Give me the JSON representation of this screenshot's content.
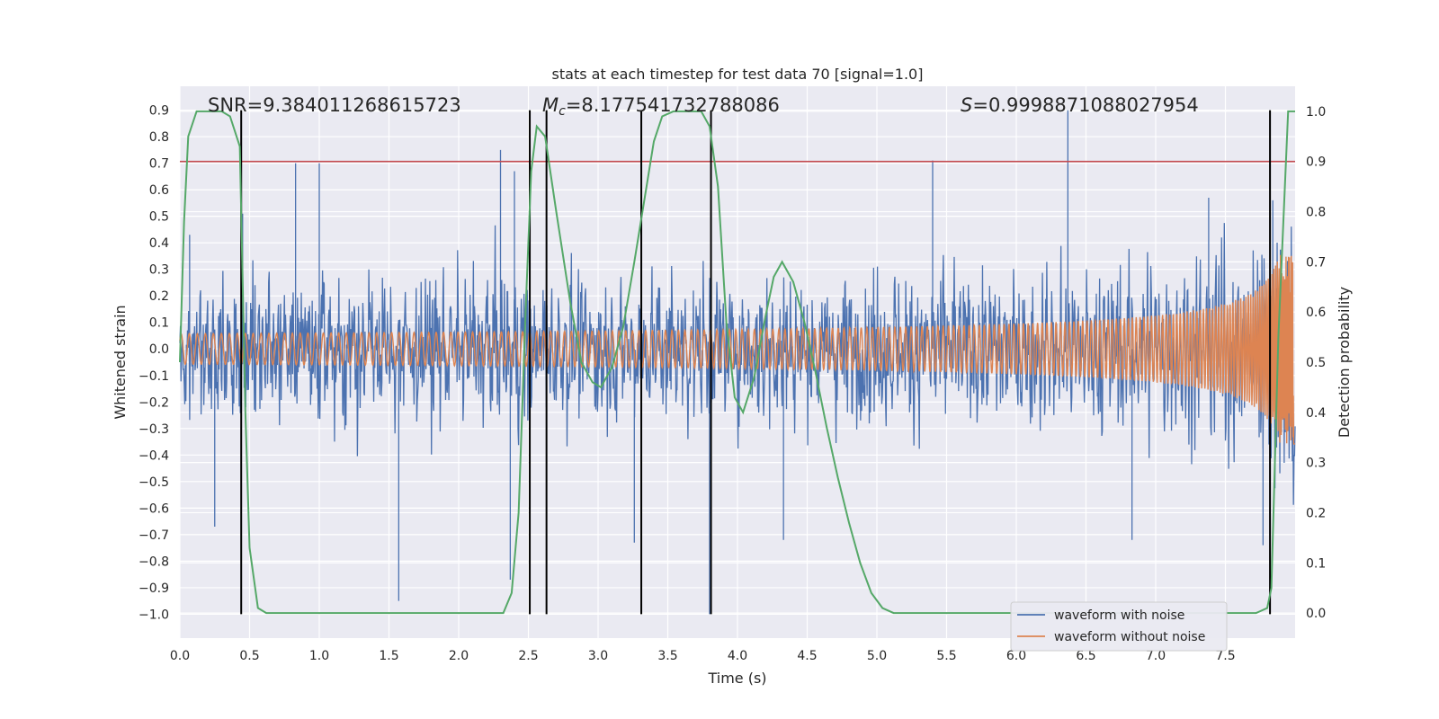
{
  "chart_data": {
    "type": "line",
    "title": "stats at each timestep for test data 70 [signal=1.0]",
    "xlabel": "Time (s)",
    "ylabel": "Whitened strain",
    "ylabel_right": "Detection probability",
    "xlim": [
      0.0,
      8.0
    ],
    "ylim": [
      -1.09,
      0.99
    ],
    "ylim_right": [
      -0.05,
      1.05
    ],
    "xticks": [
      0.0,
      0.5,
      1.0,
      1.5,
      2.0,
      2.5,
      3.0,
      3.5,
      4.0,
      4.5,
      5.0,
      5.5,
      6.0,
      6.5,
      7.0,
      7.5
    ],
    "xtick_labels": [
      "0.0",
      "0.5",
      "1.0",
      "1.5",
      "2.0",
      "2.5",
      "3.0",
      "3.5",
      "4.0",
      "4.5",
      "5.0",
      "5.5",
      "6.0",
      "6.5",
      "7.0",
      "7.5"
    ],
    "yticks": [
      0.9,
      0.8,
      0.7,
      0.6,
      0.5,
      0.4,
      0.3,
      0.2,
      0.1,
      0.0,
      -0.1,
      -0.2,
      -0.3,
      -0.4,
      -0.5,
      -0.6,
      -0.7,
      -0.8,
      -0.9,
      -1.0
    ],
    "ytick_labels": [
      "0.9",
      "0.8",
      "0.7",
      "0.6",
      "0.5",
      "0.4",
      "0.3",
      "0.2",
      "0.1",
      "0.0",
      "−0.1",
      "−0.2",
      "−0.3",
      "−0.4",
      "−0.5",
      "−0.6",
      "−0.7",
      "−0.8",
      "−0.9",
      "−1.0"
    ],
    "yticks_right": [
      1.0,
      0.9,
      0.8,
      0.7,
      0.6,
      0.5,
      0.4,
      0.3,
      0.2,
      0.1,
      0.0
    ],
    "ytick_labels_right": [
      "1.0",
      "0.9",
      "0.8",
      "0.7",
      "0.6",
      "0.5",
      "0.4",
      "0.3",
      "0.2",
      "0.1",
      "0.0"
    ],
    "annotations": {
      "snr": "SNR=9.384011268615723",
      "mc_symbol": "M",
      "mc_sub": "c",
      "mc_value": "=8.177541732788086",
      "s_symbol": "S",
      "s_value": "=0.9998871088027954"
    },
    "threshold_right": 0.9,
    "vertical_lines_x": [
      0.44,
      2.51,
      2.63,
      3.31,
      3.81,
      7.82
    ],
    "series": [
      {
        "name": "waveform with noise",
        "color": "#4c72b0",
        "axis": "left",
        "noise_amplitude": 0.35,
        "peak_samples": [
          [
            0.07,
            0.43
          ],
          [
            0.45,
            0.51
          ],
          [
            0.83,
            0.7
          ],
          [
            1.0,
            0.7
          ],
          [
            2.3,
            0.75
          ],
          [
            2.4,
            0.67
          ],
          [
            5.4,
            0.71
          ],
          [
            6.37,
            0.9
          ],
          [
            7.38,
            0.57
          ],
          [
            7.84,
            0.56
          ],
          [
            0.25,
            -0.67
          ],
          [
            1.57,
            -0.95
          ],
          [
            2.37,
            -0.87
          ],
          [
            3.26,
            -0.73
          ],
          [
            3.8,
            -1.0
          ],
          [
            4.33,
            -0.72
          ],
          [
            6.83,
            -0.72
          ],
          [
            7.77,
            -0.74
          ]
        ]
      },
      {
        "name": "waveform without noise",
        "color": "#dd8452",
        "axis": "left",
        "chirp": {
          "amplitude_start": 0.02,
          "amplitude_end": 0.36,
          "t_merge": 7.99
        }
      },
      {
        "name": "",
        "color": "#55a868",
        "axis": "right",
        "x": [
          0.0,
          0.03,
          0.06,
          0.12,
          0.2,
          0.3,
          0.36,
          0.43,
          0.47,
          0.5,
          0.56,
          0.62,
          0.7,
          1.0,
          1.5,
          2.0,
          2.2,
          2.32,
          2.38,
          2.43,
          2.48,
          2.52,
          2.56,
          2.62,
          2.7,
          2.8,
          2.88,
          2.96,
          3.02,
          3.1,
          3.18,
          3.26,
          3.33,
          3.4,
          3.46,
          3.54,
          3.62,
          3.74,
          3.8,
          3.86,
          3.92,
          3.98,
          4.04,
          4.12,
          4.2,
          4.26,
          4.32,
          4.4,
          4.48,
          4.56,
          4.64,
          4.72,
          4.8,
          4.88,
          4.96,
          5.04,
          5.12,
          5.3,
          6.0,
          7.0,
          7.5,
          7.72,
          7.8,
          7.83,
          7.88,
          7.95,
          8.0
        ],
        "y": [
          0.5,
          0.78,
          0.95,
          1.0,
          1.0,
          1.0,
          0.99,
          0.93,
          0.4,
          0.13,
          0.01,
          0.0,
          0.0,
          0.0,
          0.0,
          0.0,
          0.0,
          0.0,
          0.04,
          0.2,
          0.6,
          0.88,
          0.97,
          0.95,
          0.8,
          0.62,
          0.5,
          0.46,
          0.45,
          0.49,
          0.57,
          0.7,
          0.82,
          0.94,
          0.99,
          1.0,
          1.0,
          1.0,
          0.97,
          0.85,
          0.58,
          0.43,
          0.4,
          0.47,
          0.59,
          0.67,
          0.7,
          0.66,
          0.58,
          0.48,
          0.37,
          0.27,
          0.18,
          0.1,
          0.04,
          0.01,
          0.0,
          0.0,
          0.0,
          0.0,
          0.0,
          0.0,
          0.01,
          0.05,
          0.55,
          1.0,
          1.0
        ]
      }
    ],
    "legend": {
      "placement": "lower right",
      "entries": [
        {
          "label": "waveform with noise",
          "color": "#4c72b0"
        },
        {
          "label": "waveform without noise",
          "color": "#dd8452"
        }
      ]
    },
    "grid": true,
    "colors": {
      "plot_bg": "#eaeaf2",
      "grid": "#ffffff",
      "threshold": "#c44e52",
      "vline": "#000000",
      "axis_text": "#262626"
    }
  }
}
